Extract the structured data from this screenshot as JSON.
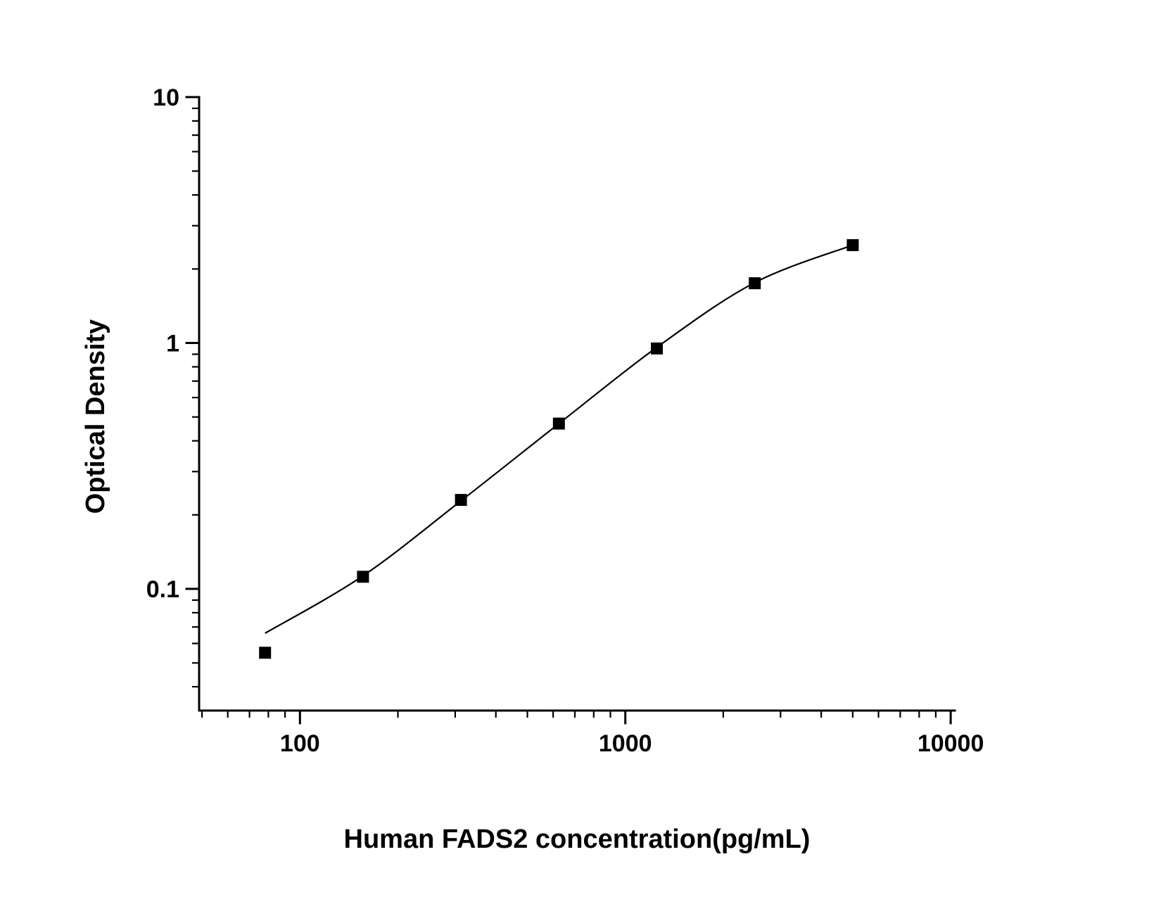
{
  "figure": {
    "background_color": "#ffffff",
    "foreground_color": "#000000"
  },
  "chart_data": {
    "type": "scatter",
    "title": "",
    "xlabel": "Human FADS2 concentration(pg/mL)",
    "ylabel": "Optical Density",
    "x_scale": "log",
    "y_scale": "log",
    "xlim": [
      49,
      10300
    ],
    "ylim": [
      0.032,
      10
    ],
    "x_ticks": [
      100,
      1000,
      10000
    ],
    "x_tick_labels": [
      "100",
      "1000",
      "10000"
    ],
    "y_ticks": [
      0.1,
      1,
      10
    ],
    "y_tick_labels": [
      "0.1",
      "1",
      "10"
    ],
    "grid": false,
    "legend": "none",
    "marker_color": "#000000",
    "line_color": "#000000",
    "series": [
      {
        "name": "standard-points",
        "marker": "square",
        "points": [
          {
            "x": 78.125,
            "y": 0.055
          },
          {
            "x": 156.25,
            "y": 0.112
          },
          {
            "x": 312.5,
            "y": 0.23
          },
          {
            "x": 625,
            "y": 0.47
          },
          {
            "x": 1250,
            "y": 0.95
          },
          {
            "x": 2500,
            "y": 1.75
          },
          {
            "x": 5000,
            "y": 2.5
          }
        ]
      }
    ],
    "fit_curve": {
      "name": "four-parameter-logistic-fit",
      "points": [
        {
          "x": 78.125,
          "y": 0.066
        },
        {
          "x": 156.25,
          "y": 0.113
        },
        {
          "x": 312.5,
          "y": 0.228
        },
        {
          "x": 625,
          "y": 0.47
        },
        {
          "x": 1250,
          "y": 0.96
        },
        {
          "x": 2500,
          "y": 1.76
        },
        {
          "x": 5000,
          "y": 2.5
        }
      ]
    }
  }
}
